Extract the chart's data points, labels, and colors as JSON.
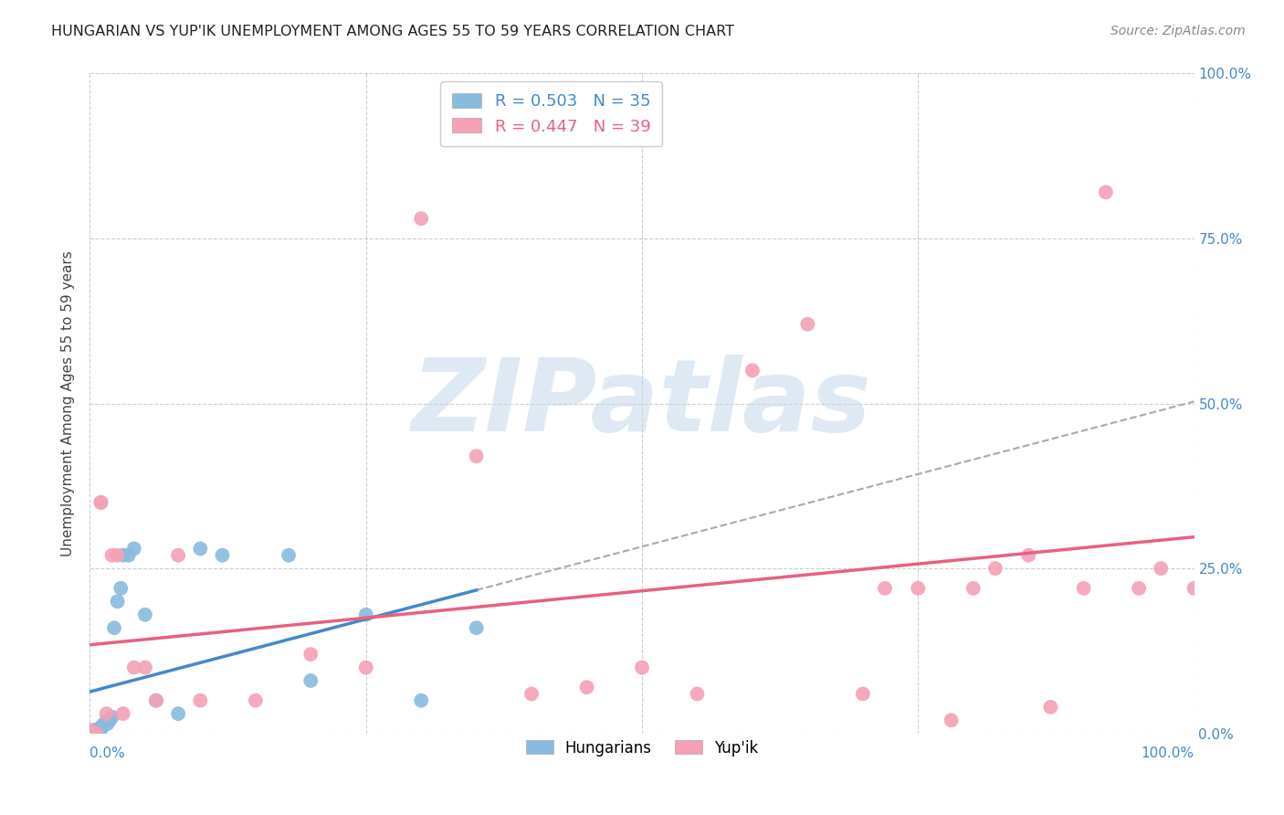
{
  "title": "HUNGARIAN VS YUP'IK UNEMPLOYMENT AMONG AGES 55 TO 59 YEARS CORRELATION CHART",
  "source": "Source: ZipAtlas.com",
  "ylabel": "Unemployment Among Ages 55 to 59 years",
  "xlim": [
    0,
    1
  ],
  "ylim": [
    0,
    1
  ],
  "xticks": [
    0.0,
    0.25,
    0.5,
    0.75,
    1.0
  ],
  "yticks": [
    0.0,
    0.25,
    0.5,
    0.75,
    1.0
  ],
  "hungarian_color": "#88bbdd",
  "yupik_color": "#f4a0b5",
  "hungarian_line_color": "#4488cc",
  "yupik_line_color": "#e86080",
  "dash_color": "#aaaaaa",
  "hungarian_R": 0.503,
  "hungarian_N": 35,
  "yupik_R": 0.447,
  "yupik_N": 39,
  "watermark": "ZIPatlas",
  "background_color": "#ffffff",
  "grid_color": "#cccccc",
  "right_axis_color": "#4488cc",
  "hungarian_scatter_x": [
    0.0,
    0.001,
    0.002,
    0.003,
    0.003,
    0.004,
    0.005,
    0.006,
    0.007,
    0.008,
    0.009,
    0.01,
    0.01,
    0.012,
    0.013,
    0.015,
    0.016,
    0.018,
    0.02,
    0.022,
    0.025,
    0.028,
    0.03,
    0.035,
    0.04,
    0.05,
    0.06,
    0.08,
    0.1,
    0.12,
    0.18,
    0.2,
    0.25,
    0.3,
    0.35
  ],
  "hungarian_scatter_y": [
    0.0,
    0.0,
    0.001,
    0.002,
    0.005,
    0.003,
    0.004,
    0.005,
    0.006,
    0.005,
    0.007,
    0.006,
    0.01,
    0.012,
    0.015,
    0.018,
    0.015,
    0.02,
    0.025,
    0.16,
    0.2,
    0.22,
    0.27,
    0.27,
    0.28,
    0.18,
    0.05,
    0.03,
    0.28,
    0.27,
    0.27,
    0.08,
    0.18,
    0.05,
    0.16
  ],
  "yupik_scatter_x": [
    0.0,
    0.002,
    0.004,
    0.006,
    0.01,
    0.015,
    0.02,
    0.025,
    0.03,
    0.04,
    0.05,
    0.06,
    0.08,
    0.1,
    0.15,
    0.2,
    0.25,
    0.3,
    0.35,
    0.4,
    0.45,
    0.5,
    0.55,
    0.6,
    0.65,
    0.7,
    0.72,
    0.75,
    0.78,
    0.8,
    0.82,
    0.85,
    0.87,
    0.9,
    0.92,
    0.95,
    0.97,
    1.0,
    0.01
  ],
  "yupik_scatter_y": [
    0.005,
    0.0,
    0.0,
    0.0,
    0.35,
    0.03,
    0.27,
    0.27,
    0.03,
    0.1,
    0.1,
    0.05,
    0.27,
    0.05,
    0.05,
    0.12,
    0.1,
    0.78,
    0.42,
    0.06,
    0.07,
    0.1,
    0.06,
    0.55,
    0.62,
    0.06,
    0.22,
    0.22,
    0.02,
    0.22,
    0.25,
    0.27,
    0.04,
    0.22,
    0.82,
    0.22,
    0.25,
    0.22,
    0.35
  ]
}
